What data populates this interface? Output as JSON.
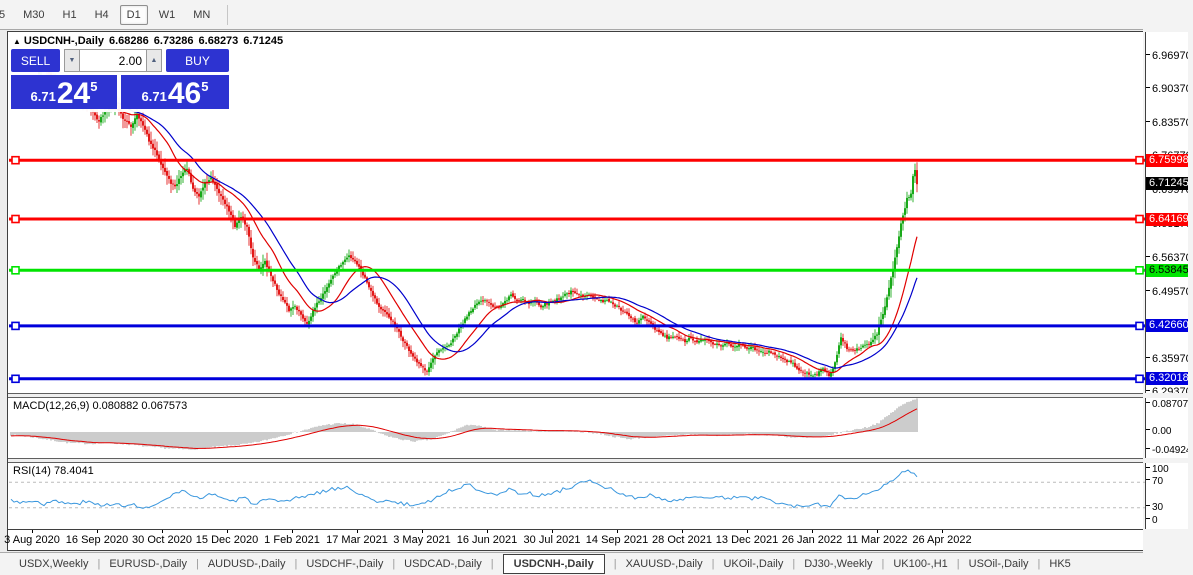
{
  "toolbar": {
    "timeframes": [
      "5",
      "M30",
      "H1",
      "H4",
      "D1",
      "W1",
      "MN"
    ],
    "active_timeframe": "D1"
  },
  "chart_header": {
    "collapse_icon": "▲",
    "symbol": "USDCNH-,Daily",
    "open": "6.68286",
    "high": "6.73286",
    "low": "6.68273",
    "close": "6.71245"
  },
  "trade_panel": {
    "sell_label": "SELL",
    "buy_label": "BUY",
    "volume_value": "2.00",
    "down_arrow": "▼",
    "up_arrow": "▲",
    "sell_price": {
      "prefix": "6.71",
      "big": "24",
      "sup": "5"
    },
    "buy_price": {
      "prefix": "6.71",
      "big": "46",
      "sup": "5"
    }
  },
  "price_axis": {
    "ticks": [
      "6.96970",
      "6.90370",
      "6.83570",
      "6.76770",
      "6.69970",
      "6.63170",
      "6.56370",
      "6.49570",
      "6.42770",
      "6.35970",
      "6.29370"
    ],
    "level_labels": [
      {
        "text": "6.75998",
        "bg": "#fe0000",
        "fg": "#ffffff"
      },
      {
        "text": "6.64169",
        "bg": "#fe0000",
        "fg": "#ffffff"
      },
      {
        "text": "6.53845",
        "bg": "#00e400",
        "fg": "#000000"
      },
      {
        "text": "6.42660",
        "bg": "#0000dc",
        "fg": "#ffffff"
      },
      {
        "text": "6.32018",
        "bg": "#0000dc",
        "fg": "#ffffff"
      }
    ],
    "current_label": {
      "text": "6.71245",
      "bg": "#000000",
      "fg": "#ffffff"
    }
  },
  "macd_panel": {
    "label": "MACD(12,26,9) 0.080882 0.067573",
    "axis_ticks": [
      "0.087078",
      "0.00",
      "-0.049247"
    ]
  },
  "rsi_panel": {
    "label": "RSI(14) 78.4041",
    "axis_ticks": [
      "100",
      "70",
      "30",
      "0"
    ]
  },
  "date_axis": {
    "labels": [
      "3 Aug 2020",
      "16 Sep 2020",
      "30 Oct 2020",
      "15 Dec 2020",
      "1 Feb 2021",
      "17 Mar 2021",
      "3 May 2021",
      "16 Jun 2021",
      "30 Jul 2021",
      "14 Sep 2021",
      "28 Oct 2021",
      "13 Dec 2021",
      "26 Jan 2022",
      "11 Mar 2022",
      "26 Apr 2022"
    ]
  },
  "tab_bar": {
    "separator": "|",
    "tabs": [
      "USDX,Weekly",
      "EURUSD-,Daily",
      "AUDUSD-,Daily",
      "USDCHF-,Daily",
      "USDCAD-,Daily",
      "USDCNH-,Daily",
      "XAUUSD-,Daily",
      "UKOil-,Daily",
      "DJ30-,Weekly",
      "UK100-,H1",
      "USOil-,Daily",
      "HK5"
    ],
    "active_tab": "USDCNH-,Daily",
    "scroll_left_icon": "◄",
    "scroll_right_icon": "►"
  },
  "chart_data": {
    "type": "candlestick",
    "title": "USDCNH-,Daily",
    "current_ohlc": {
      "open": 6.68286,
      "high": 6.73286,
      "low": 6.68273,
      "close": 6.71245
    },
    "up_color": "#00a000",
    "down_color": "#e00000",
    "ma_fast": {
      "period": 18,
      "color": "#e00000"
    },
    "ma_slow": {
      "period": 30,
      "color": "#0000cc"
    },
    "price_scale": {
      "p0": [
        6.9697,
        56
      ],
      "p1": [
        6.2937,
        392
      ]
    },
    "price_ticks": [
      6.9697,
      6.9037,
      6.8357,
      6.7677,
      6.6997,
      6.6317,
      6.5637,
      6.4957,
      6.4277,
      6.3597,
      6.2937
    ],
    "levels": [
      {
        "price": 6.75998,
        "color": "#fe0000"
      },
      {
        "price": 6.64169,
        "color": "#fe0000"
      },
      {
        "price": 6.53845,
        "color": "#00e400"
      },
      {
        "price": 6.4266,
        "color": "#0000dc"
      },
      {
        "price": 6.32018,
        "color": "#0000dc"
      }
    ],
    "current_price": 6.71245,
    "x_range": [
      40,
      918
    ],
    "close_anchors": [
      [
        40,
        6.945
      ],
      [
        46,
        6.955
      ],
      [
        52,
        6.925
      ],
      [
        58,
        6.9
      ],
      [
        64,
        6.915
      ],
      [
        70,
        6.905
      ],
      [
        78,
        6.875
      ],
      [
        86,
        6.885
      ],
      [
        94,
        6.855
      ],
      [
        100,
        6.84
      ],
      [
        108,
        6.86
      ],
      [
        116,
        6.877
      ],
      [
        124,
        6.845
      ],
      [
        132,
        6.827
      ],
      [
        138,
        6.855
      ],
      [
        146,
        6.82
      ],
      [
        152,
        6.79
      ],
      [
        158,
        6.772
      ],
      [
        164,
        6.745
      ],
      [
        170,
        6.72
      ],
      [
        176,
        6.705
      ],
      [
        182,
        6.73
      ],
      [
        188,
        6.745
      ],
      [
        194,
        6.7
      ],
      [
        200,
        6.688
      ],
      [
        206,
        6.715
      ],
      [
        212,
        6.723
      ],
      [
        218,
        6.7
      ],
      [
        224,
        6.682
      ],
      [
        230,
        6.658
      ],
      [
        236,
        6.628
      ],
      [
        242,
        6.648
      ],
      [
        248,
        6.625
      ],
      [
        254,
        6.565
      ],
      [
        260,
        6.542
      ],
      [
        266,
        6.555
      ],
      [
        272,
        6.528
      ],
      [
        278,
        6.5
      ],
      [
        284,
        6.478
      ],
      [
        290,
        6.458
      ],
      [
        296,
        6.468
      ],
      [
        302,
        6.448
      ],
      [
        308,
        6.432
      ],
      [
        314,
        6.455
      ],
      [
        320,
        6.478
      ],
      [
        326,
        6.498
      ],
      [
        332,
        6.52
      ],
      [
        338,
        6.54
      ],
      [
        344,
        6.555
      ],
      [
        350,
        6.568
      ],
      [
        356,
        6.558
      ],
      [
        362,
        6.538
      ],
      [
        368,
        6.515
      ],
      [
        374,
        6.49
      ],
      [
        380,
        6.465
      ],
      [
        386,
        6.452
      ],
      [
        392,
        6.44
      ],
      [
        398,
        6.42
      ],
      [
        404,
        6.398
      ],
      [
        410,
        6.378
      ],
      [
        416,
        6.358
      ],
      [
        422,
        6.344
      ],
      [
        428,
        6.338
      ],
      [
        434,
        6.36
      ],
      [
        440,
        6.376
      ],
      [
        446,
        6.382
      ],
      [
        452,
        6.392
      ],
      [
        458,
        6.412
      ],
      [
        464,
        6.432
      ],
      [
        470,
        6.455
      ],
      [
        476,
        6.468
      ],
      [
        482,
        6.475
      ],
      [
        488,
        6.478
      ],
      [
        494,
        6.468
      ],
      [
        500,
        6.462
      ],
      [
        506,
        6.475
      ],
      [
        512,
        6.49
      ],
      [
        518,
        6.477
      ],
      [
        524,
        6.482
      ],
      [
        530,
        6.472
      ],
      [
        536,
        6.477
      ],
      [
        542,
        6.467
      ],
      [
        548,
        6.472
      ],
      [
        554,
        6.477
      ],
      [
        560,
        6.482
      ],
      [
        566,
        6.49
      ],
      [
        572,
        6.495
      ],
      [
        578,
        6.49
      ],
      [
        584,
        6.486
      ],
      [
        590,
        6.492
      ],
      [
        596,
        6.482
      ],
      [
        602,
        6.476
      ],
      [
        608,
        6.48
      ],
      [
        614,
        6.47
      ],
      [
        620,
        6.462
      ],
      [
        626,
        6.452
      ],
      [
        632,
        6.442
      ],
      [
        638,
        6.432
      ],
      [
        644,
        6.446
      ],
      [
        650,
        6.432
      ],
      [
        656,
        6.42
      ],
      [
        662,
        6.41
      ],
      [
        668,
        6.402
      ],
      [
        674,
        6.406
      ],
      [
        680,
        6.4
      ],
      [
        686,
        6.396
      ],
      [
        692,
        6.402
      ],
      [
        698,
        6.392
      ],
      [
        704,
        6.4
      ],
      [
        710,
        6.396
      ],
      [
        716,
        6.39
      ],
      [
        722,
        6.386
      ],
      [
        728,
        6.392
      ],
      [
        734,
        6.386
      ],
      [
        740,
        6.39
      ],
      [
        746,
        6.382
      ],
      [
        752,
        6.386
      ],
      [
        758,
        6.376
      ],
      [
        764,
        6.372
      ],
      [
        770,
        6.376
      ],
      [
        776,
        6.37
      ],
      [
        782,
        6.362
      ],
      [
        788,
        6.356
      ],
      [
        794,
        6.35
      ],
      [
        800,
        6.34
      ],
      [
        806,
        6.332
      ],
      [
        812,
        6.326
      ],
      [
        818,
        6.33
      ],
      [
        824,
        6.342
      ],
      [
        830,
        6.326
      ],
      [
        836,
        6.352
      ],
      [
        842,
        6.402
      ],
      [
        848,
        6.382
      ],
      [
        854,
        6.376
      ],
      [
        860,
        6.382
      ],
      [
        866,
        6.388
      ],
      [
        872,
        6.392
      ],
      [
        878,
        6.412
      ],
      [
        884,
        6.452
      ],
      [
        890,
        6.502
      ],
      [
        896,
        6.562
      ],
      [
        902,
        6.632
      ],
      [
        908,
        6.682
      ],
      [
        912,
        6.695
      ],
      [
        914,
        6.725
      ],
      [
        916,
        6.742
      ],
      [
        918,
        6.712
      ]
    ],
    "macd": {
      "value": 0.080882,
      "signal": 0.067573,
      "hist_color": "#c6c6c6",
      "signal_color": "#e00000",
      "scale": {
        "p0": [
          0,
          432
        ],
        "p1": [
          0.087078,
          398
        ]
      },
      "anchors": [
        [
          14,
          -0.008
        ],
        [
          30,
          -0.012
        ],
        [
          50,
          -0.02
        ],
        [
          70,
          -0.028
        ],
        [
          90,
          -0.03
        ],
        [
          110,
          -0.028
        ],
        [
          130,
          -0.032
        ],
        [
          150,
          -0.038
        ],
        [
          170,
          -0.042
        ],
        [
          190,
          -0.045
        ],
        [
          210,
          -0.04
        ],
        [
          230,
          -0.035
        ],
        [
          250,
          -0.03
        ],
        [
          265,
          -0.022
        ],
        [
          280,
          -0.012
        ],
        [
          295,
          -0.002
        ],
        [
          310,
          0.008
        ],
        [
          325,
          0.018
        ],
        [
          340,
          0.022
        ],
        [
          355,
          0.02
        ],
        [
          370,
          0.008
        ],
        [
          385,
          -0.008
        ],
        [
          400,
          -0.018
        ],
        [
          415,
          -0.024
        ],
        [
          430,
          -0.02
        ],
        [
          445,
          -0.008
        ],
        [
          460,
          0.01
        ],
        [
          472,
          0.02
        ],
        [
          485,
          0.012
        ],
        [
          498,
          0.004
        ],
        [
          510,
          0.006
        ],
        [
          525,
          0.004
        ],
        [
          540,
          0.002
        ],
        [
          555,
          0.004
        ],
        [
          570,
          0.002
        ],
        [
          585,
          0
        ],
        [
          600,
          -0.004
        ],
        [
          615,
          -0.012
        ],
        [
          630,
          -0.018
        ],
        [
          645,
          -0.014
        ],
        [
          660,
          -0.012
        ],
        [
          675,
          -0.008
        ],
        [
          690,
          -0.006
        ],
        [
          705,
          -0.008
        ],
        [
          720,
          -0.009
        ],
        [
          735,
          -0.007
        ],
        [
          750,
          -0.006
        ],
        [
          765,
          -0.007
        ],
        [
          780,
          -0.01
        ],
        [
          795,
          -0.014
        ],
        [
          810,
          -0.015
        ],
        [
          825,
          -0.012
        ],
        [
          840,
          -0.002
        ],
        [
          855,
          0.006
        ],
        [
          868,
          0.012
        ],
        [
          880,
          0.024
        ],
        [
          890,
          0.044
        ],
        [
          900,
          0.064
        ],
        [
          908,
          0.076
        ],
        [
          914,
          0.083
        ],
        [
          918,
          0.085
        ]
      ]
    },
    "rsi": {
      "value": 78.4041,
      "color": "#3a97de",
      "levels": [
        70,
        30
      ],
      "level_color": "#bbbbbb",
      "scale": {
        "p0": [
          0,
          527
        ],
        "p1": [
          100,
          463
        ]
      },
      "anchors": [
        [
          14,
          42
        ],
        [
          25,
          38
        ],
        [
          35,
          42
        ],
        [
          45,
          36
        ],
        [
          55,
          40
        ],
        [
          65,
          38
        ],
        [
          75,
          35
        ],
        [
          85,
          40
        ],
        [
          95,
          36
        ],
        [
          105,
          34
        ],
        [
          115,
          38
        ],
        [
          125,
          30
        ],
        [
          135,
          36
        ],
        [
          145,
          28
        ],
        [
          155,
          34
        ],
        [
          165,
          40
        ],
        [
          175,
          52
        ],
        [
          185,
          55
        ],
        [
          195,
          45
        ],
        [
          205,
          48
        ],
        [
          215,
          52
        ],
        [
          225,
          44
        ],
        [
          235,
          40
        ],
        [
          245,
          46
        ],
        [
          255,
          36
        ],
        [
          265,
          42
        ],
        [
          275,
          40
        ],
        [
          285,
          38
        ],
        [
          295,
          44
        ],
        [
          305,
          48
        ],
        [
          315,
          52
        ],
        [
          325,
          56
        ],
        [
          335,
          60
        ],
        [
          345,
          62
        ],
        [
          355,
          58
        ],
        [
          365,
          48
        ],
        [
          375,
          40
        ],
        [
          385,
          42
        ],
        [
          395,
          38
        ],
        [
          405,
          36
        ],
        [
          415,
          34
        ],
        [
          425,
          38
        ],
        [
          435,
          44
        ],
        [
          445,
          52
        ],
        [
          455,
          60
        ],
        [
          465,
          64
        ],
        [
          470,
          66
        ],
        [
          480,
          58
        ],
        [
          490,
          54
        ],
        [
          500,
          52
        ],
        [
          510,
          58
        ],
        [
          520,
          52
        ],
        [
          530,
          54
        ],
        [
          540,
          48
        ],
        [
          550,
          52
        ],
        [
          560,
          56
        ],
        [
          570,
          62
        ],
        [
          580,
          68
        ],
        [
          590,
          72
        ],
        [
          600,
          64
        ],
        [
          610,
          60
        ],
        [
          620,
          54
        ],
        [
          630,
          48
        ],
        [
          640,
          44
        ],
        [
          650,
          50
        ],
        [
          660,
          44
        ],
        [
          670,
          40
        ],
        [
          680,
          42
        ],
        [
          690,
          46
        ],
        [
          700,
          44
        ],
        [
          710,
          48
        ],
        [
          720,
          46
        ],
        [
          730,
          44
        ],
        [
          740,
          48
        ],
        [
          750,
          44
        ],
        [
          760,
          46
        ],
        [
          770,
          42
        ],
        [
          780,
          38
        ],
        [
          790,
          34
        ],
        [
          800,
          32
        ],
        [
          810,
          30
        ],
        [
          820,
          36
        ],
        [
          830,
          32
        ],
        [
          840,
          48
        ],
        [
          850,
          44
        ],
        [
          860,
          48
        ],
        [
          866,
          52
        ],
        [
          872,
          54
        ],
        [
          878,
          58
        ],
        [
          884,
          66
        ],
        [
          890,
          72
        ],
        [
          896,
          76
        ],
        [
          902,
          84
        ],
        [
          906,
          87
        ],
        [
          910,
          88
        ],
        [
          914,
          82
        ],
        [
          918,
          78.4
        ]
      ]
    },
    "date_ticks_x": [
      32,
      97,
      162,
      227,
      292,
      357,
      422,
      487,
      552,
      617,
      682,
      747,
      812,
      877,
      942
    ]
  }
}
